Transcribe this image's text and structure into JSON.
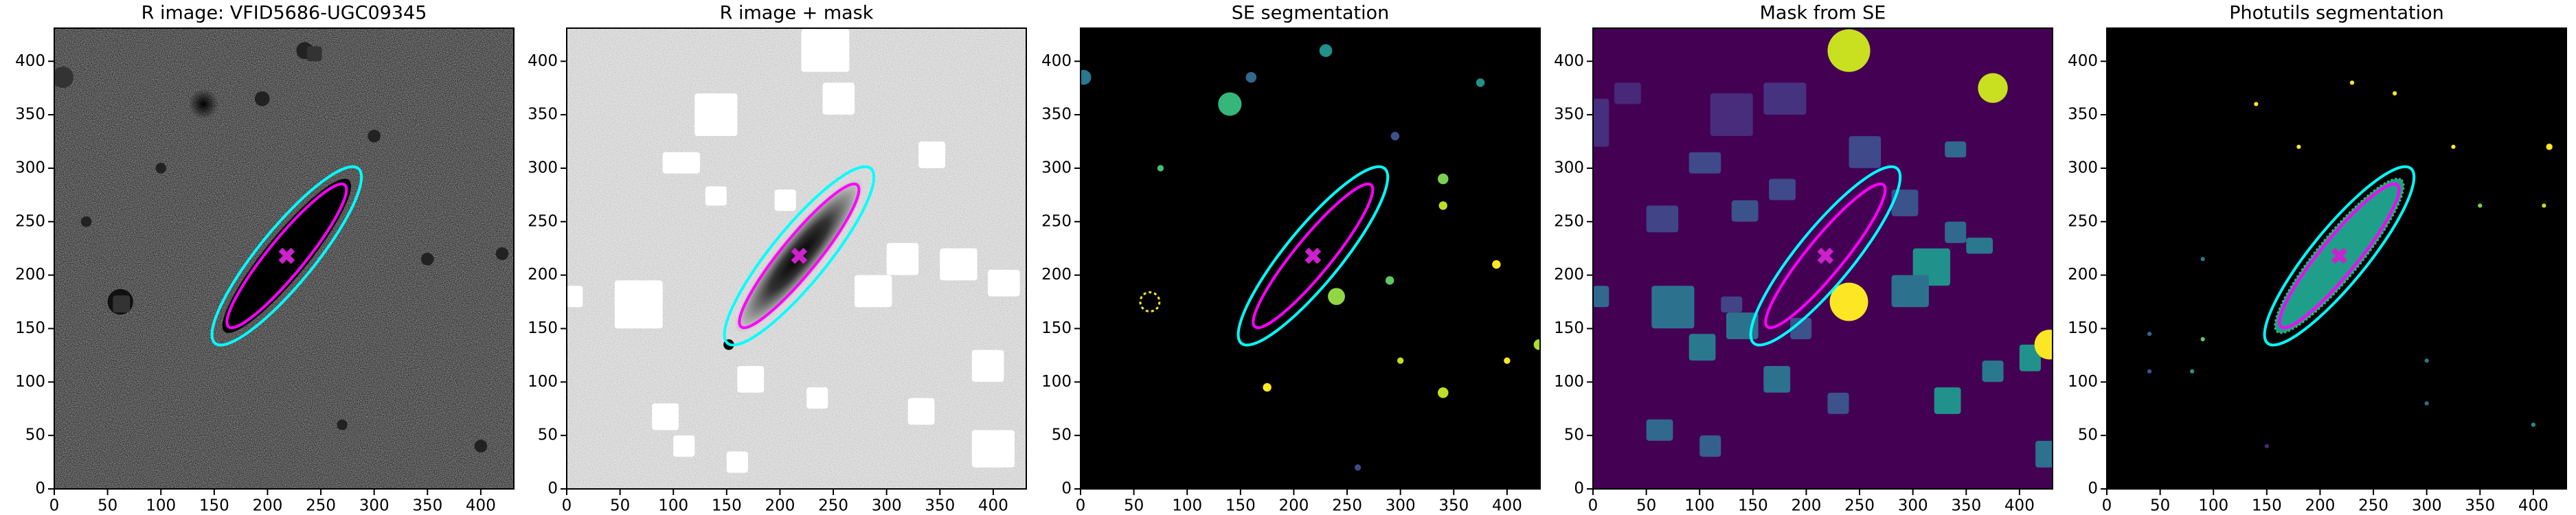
{
  "chart_data": [
    {
      "type": "image",
      "title": "R image: VFID5686-UGC09345",
      "xlim": [
        0,
        431
      ],
      "ylim": [
        0,
        431
      ],
      "xticks": [
        0,
        50,
        100,
        150,
        200,
        250,
        300,
        350,
        400
      ],
      "yticks": [
        0,
        50,
        100,
        150,
        200,
        250,
        300,
        350,
        400
      ]
    },
    {
      "type": "image",
      "title": "R image + mask",
      "xlim": [
        0,
        431
      ],
      "ylim": [
        0,
        431
      ],
      "xticks": [
        0,
        50,
        100,
        150,
        200,
        250,
        300,
        350,
        400
      ],
      "yticks": [
        0,
        50,
        100,
        150,
        200,
        250,
        300,
        350,
        400
      ]
    },
    {
      "type": "image",
      "title": "SE segmentation",
      "xlim": [
        0,
        431
      ],
      "ylim": [
        0,
        431
      ],
      "xticks": [
        0,
        50,
        100,
        150,
        200,
        250,
        300,
        350,
        400
      ],
      "yticks": [
        0,
        50,
        100,
        150,
        200,
        250,
        300,
        350,
        400
      ]
    },
    {
      "type": "image",
      "title": "Mask from SE",
      "xlim": [
        0,
        431
      ],
      "ylim": [
        0,
        431
      ],
      "xticks": [
        0,
        50,
        100,
        150,
        200,
        250,
        300,
        350,
        400
      ],
      "yticks": [
        0,
        50,
        100,
        150,
        200,
        250,
        300,
        350,
        400
      ]
    },
    {
      "type": "image",
      "title": "Photutils segmentation",
      "xlim": [
        0,
        431
      ],
      "ylim": [
        0,
        431
      ],
      "xticks": [
        0,
        50,
        100,
        150,
        200,
        250,
        300,
        350,
        400
      ],
      "yticks": [
        0,
        50,
        100,
        150,
        200,
        250,
        300,
        350,
        400
      ]
    }
  ]
}
